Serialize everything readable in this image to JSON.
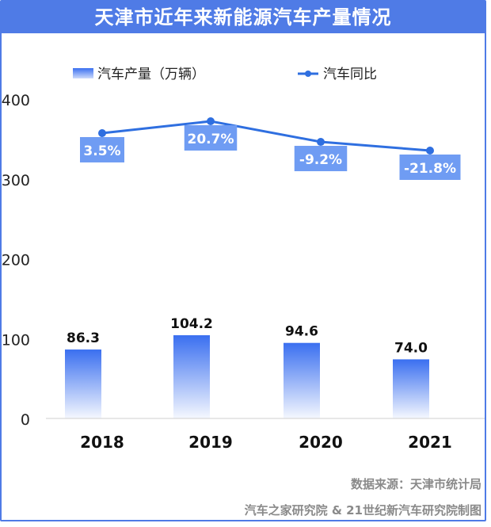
{
  "chart_data": {
    "type": "bar",
    "title": "天津市近年来新能源汽车产量情况",
    "categories": [
      "2018",
      "2019",
      "2020",
      "2021"
    ],
    "series": [
      {
        "name": "汽车产量（万辆）",
        "type": "bar",
        "values": [
          86.3,
          104.2,
          94.6,
          74.0
        ]
      },
      {
        "name": "汽车同比",
        "type": "line",
        "values": [
          3.5,
          20.7,
          -9.2,
          -21.8
        ]
      }
    ],
    "ylim": [
      0,
      400
    ],
    "yticks": [
      0,
      100,
      200,
      300,
      400
    ],
    "bar_labels": [
      "86.3",
      "104.2",
      "94.6",
      "74.0"
    ],
    "line_labels": [
      "3.5%",
      "20.7%",
      "-9.2%",
      "-21.8%"
    ],
    "legend_position": "top",
    "grid": false
  },
  "footer": {
    "source": "数据来源：天津市统计局",
    "credit": "汽车之家研究院 & 21世纪新汽车研究院制图"
  },
  "colors": {
    "accent": "#4f7be6",
    "bar_top": "#3a6ff0",
    "line": "#2f6fe0",
    "label_box": "#6f9cf3"
  }
}
